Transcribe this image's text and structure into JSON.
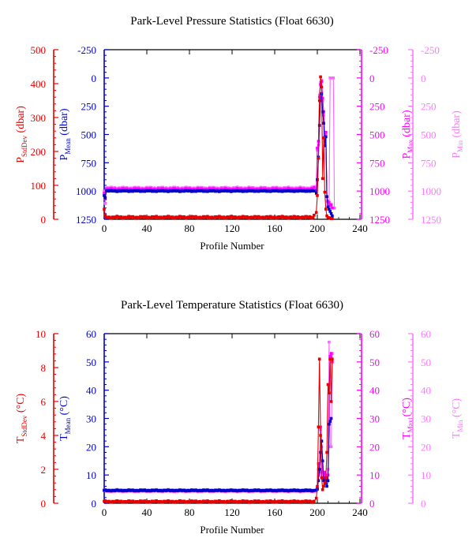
{
  "colors": {
    "stddev": "#e80000",
    "mean": "#0000cc",
    "max": "#ff00ff",
    "min": "#ff66ff",
    "min_axis": "#ff77ff",
    "frame": "#000000"
  },
  "chart_data": [
    {
      "type": "line",
      "title": "Park-Level Pressure Statistics (Float 6630)",
      "xlabel": "Profile Number",
      "xlim": [
        0,
        240
      ],
      "xticks": [
        "0",
        "40",
        "80",
        "120",
        "160",
        "200",
        "240"
      ],
      "grid": false,
      "axes": [
        {
          "key": "sd",
          "label_main": "P",
          "label_sub": "StdDev",
          "label_unit": " (dbar)",
          "lim": [
            0,
            500
          ],
          "reversed": false,
          "ticks": [
            "0",
            "100",
            "200",
            "300",
            "400",
            "500"
          ]
        },
        {
          "key": "mean",
          "label_main": "P",
          "label_sub": "Mean",
          "label_unit": " (dbar)",
          "lim": [
            -250,
            1250
          ],
          "reversed": true,
          "ticks": [
            "-250",
            "0",
            "250",
            "500",
            "750",
            "1000",
            "1250"
          ]
        },
        {
          "key": "max",
          "label_main": "P",
          "label_sub": "Max",
          "label_unit": " (dbar)",
          "lim": [
            -250,
            1250
          ],
          "reversed": true,
          "ticks": [
            "-250",
            "0",
            "250",
            "500",
            "750",
            "1000",
            "1250"
          ]
        },
        {
          "key": "min",
          "label_main": "P",
          "label_sub": "Min",
          "label_unit": " (dbar)",
          "lim": [
            -250,
            1250
          ],
          "reversed": true,
          "ticks": [
            "-250",
            "0",
            "250",
            "500",
            "750",
            "1000",
            "1250"
          ]
        }
      ],
      "series": [
        {
          "axis": "min",
          "color": "min",
          "regular": {
            "from": 2,
            "to": 196,
            "base": 975,
            "amp": 10
          },
          "start": [
            [
              0,
              1000
            ],
            [
              1,
              1110
            ],
            [
              2,
              975
            ]
          ],
          "tail": [
            [
              197,
              960
            ],
            [
              199,
              1000
            ],
            [
              200,
              640
            ],
            [
              201,
              590
            ],
            [
              202,
              150
            ],
            [
              203,
              40
            ],
            [
              204,
              20
            ],
            [
              205,
              200
            ],
            [
              206,
              330
            ],
            [
              207,
              560
            ],
            [
              208,
              500
            ],
            [
              209,
              1090
            ],
            [
              210,
              1110
            ],
            [
              211,
              1120
            ],
            [
              212,
              0
            ],
            [
              214,
              0
            ],
            [
              215,
              0
            ],
            [
              216,
              1150
            ]
          ]
        },
        {
          "axis": "max",
          "color": "max",
          "regular": {
            "from": 2,
            "to": 196,
            "base": 985,
            "amp": 8
          },
          "start": [
            [
              0,
              1020
            ],
            [
              1,
              1070
            ],
            [
              2,
              985
            ]
          ],
          "tail": [
            [
              197,
              970
            ],
            [
              199,
              1000
            ],
            [
              200,
              620
            ],
            [
              201,
              560
            ],
            [
              202,
              170
            ],
            [
              203,
              60
            ],
            [
              204,
              30
            ],
            [
              205,
              180
            ],
            [
              206,
              300
            ],
            [
              207,
              520
            ],
            [
              208,
              480
            ],
            [
              209,
              1050
            ],
            [
              210,
              1090
            ],
            [
              211,
              1100
            ],
            [
              212,
              1130
            ],
            [
              213,
              1120
            ],
            [
              214,
              1150
            ]
          ]
        },
        {
          "axis": "mean",
          "color": "mean",
          "regular": {
            "from": 2,
            "to": 196,
            "base": 1000,
            "amp": 5
          },
          "start": [
            [
              0,
              1040
            ],
            [
              1,
              1060
            ],
            [
              2,
              1000
            ]
          ],
          "tail": [
            [
              197,
              1000
            ],
            [
              199,
              1020
            ],
            [
              200,
              900
            ],
            [
              201,
              700
            ],
            [
              202,
              420
            ],
            [
              203,
              200
            ],
            [
              204,
              140
            ],
            [
              205,
              300
            ],
            [
              206,
              400
            ],
            [
              207,
              600
            ],
            [
              208,
              520
            ],
            [
              209,
              1050
            ],
            [
              210,
              1140
            ],
            [
              211,
              1160
            ],
            [
              212,
              1180
            ],
            [
              213,
              1200
            ],
            [
              214,
              1220
            ]
          ]
        },
        {
          "axis": "sd",
          "color": "stddev",
          "regular": {
            "from": 2,
            "to": 196,
            "base": 6,
            "amp": 3
          },
          "start": [
            [
              0,
              30
            ],
            [
              1,
              12
            ],
            [
              2,
              6
            ]
          ],
          "tail": [
            [
              197,
              12
            ],
            [
              199,
              20
            ],
            [
              200,
              70
            ],
            [
              201,
              180
            ],
            [
              202,
              350
            ],
            [
              203,
              420
            ],
            [
              204,
              390
            ],
            [
              205,
              120
            ],
            [
              206,
              240
            ],
            [
              207,
              80
            ],
            [
              208,
              30
            ],
            [
              209,
              10
            ],
            [
              210,
              5
            ],
            [
              211,
              5
            ],
            [
              212,
              3
            ],
            [
              213,
              2
            ],
            [
              214,
              2
            ]
          ]
        }
      ]
    },
    {
      "type": "line",
      "title": "Park-Level Temperature Statistics (Float 6630)",
      "xlabel": "Profile Number",
      "xlim": [
        0,
        240
      ],
      "xticks": [
        "0",
        "40",
        "80",
        "120",
        "160",
        "200",
        "240"
      ],
      "grid": false,
      "axes": [
        {
          "key": "sd",
          "label_main": "T",
          "label_sub": "StdDev",
          "label_unit": " (°C)",
          "lim": [
            0,
            10
          ],
          "reversed": false,
          "ticks": [
            "0",
            "2",
            "4",
            "6",
            "8",
            "10"
          ]
        },
        {
          "key": "mean",
          "label_main": "T",
          "label_sub": "Mean",
          "label_unit": " (°C)",
          "lim": [
            0,
            60
          ],
          "reversed": false,
          "ticks": [
            "0",
            "10",
            "20",
            "30",
            "40",
            "50",
            "60"
          ]
        },
        {
          "key": "max",
          "label_main": "T",
          "label_sub": "Max",
          "label_unit": " (°C)",
          "lim": [
            0,
            60
          ],
          "reversed": false,
          "ticks": [
            "0",
            "10",
            "20",
            "30",
            "40",
            "50",
            "60"
          ]
        },
        {
          "key": "min",
          "label_main": "T",
          "label_sub": "Min",
          "label_unit": " (°C)",
          "lim": [
            0,
            60
          ],
          "reversed": false,
          "ticks": [
            "0",
            "10",
            "20",
            "30",
            "40",
            "50",
            "60"
          ]
        }
      ],
      "series": [
        {
          "axis": "min",
          "color": "min",
          "regular": {
            "from": 0,
            "to": 196,
            "base": 4.3,
            "amp": 0.25
          },
          "start": [],
          "tail": [
            [
              197,
              4.2
            ],
            [
              199,
              4.3
            ],
            [
              200,
              5.0
            ],
            [
              201,
              12.0
            ],
            [
              202,
              10.0
            ],
            [
              203,
              26.0
            ],
            [
              204,
              20.0
            ],
            [
              205,
              10.0
            ],
            [
              206,
              11.0
            ],
            [
              207,
              9.0
            ],
            [
              208,
              10.0
            ],
            [
              209,
              8.0
            ],
            [
              210,
              12.0
            ],
            [
              211,
              57.0
            ],
            [
              212,
              20.0
            ],
            [
              213,
              20.0
            ],
            [
              214,
              53.0
            ]
          ]
        },
        {
          "axis": "max",
          "color": "max",
          "regular": {
            "from": 0,
            "to": 196,
            "base": 4.6,
            "amp": 0.25
          },
          "start": [],
          "tail": [
            [
              197,
              4.6
            ],
            [
              199,
              4.7
            ],
            [
              200,
              5.5
            ],
            [
              201,
              14.0
            ],
            [
              202,
              11.0
            ],
            [
              203,
              27.0
            ],
            [
              204,
              22.0
            ],
            [
              205,
              11.0
            ],
            [
              206,
              9.0
            ],
            [
              207,
              11.0
            ],
            [
              208,
              8.0
            ],
            [
              209,
              9.0
            ],
            [
              210,
              10.0
            ],
            [
              211,
              28.0
            ],
            [
              212,
              52.0
            ],
            [
              213,
              53.0
            ],
            [
              214,
              50.0
            ]
          ]
        },
        {
          "axis": "mean",
          "color": "mean",
          "regular": {
            "from": 0,
            "to": 196,
            "base": 4.5,
            "amp": 0.15
          },
          "start": [],
          "tail": [
            [
              197,
              4.5
            ],
            [
              199,
              4.6
            ],
            [
              200,
              5.0
            ],
            [
              201,
              8.0
            ],
            [
              202,
              12.0
            ],
            [
              203,
              18.0
            ],
            [
              204,
              22.0
            ],
            [
              205,
              15.0
            ],
            [
              206,
              8.0
            ],
            [
              207,
              7.0
            ],
            [
              208,
              9.0
            ],
            [
              209,
              6.0
            ],
            [
              210,
              8.0
            ],
            [
              211,
              28.0
            ],
            [
              212,
              29.0
            ],
            [
              213,
              30.0
            ]
          ]
        },
        {
          "axis": "sd",
          "color": "stddev",
          "regular": {
            "from": 0,
            "to": 196,
            "base": 0.1,
            "amp": 0.05
          },
          "start": [],
          "tail": [
            [
              197,
              0.12
            ],
            [
              199,
              0.3
            ],
            [
              200,
              1.0
            ],
            [
              201,
              4.5
            ],
            [
              202,
              8.5
            ],
            [
              203,
              4.0
            ],
            [
              204,
              1.5
            ],
            [
              205,
              0.8
            ],
            [
              206,
              1.0
            ],
            [
              207,
              1.2
            ],
            [
              208,
              1.5
            ],
            [
              209,
              3.0
            ],
            [
              210,
              7.0
            ],
            [
              211,
              6.5
            ],
            [
              212,
              8.5
            ],
            [
              213,
              6.0
            ],
            [
              214,
              8.5
            ]
          ]
        }
      ]
    }
  ]
}
